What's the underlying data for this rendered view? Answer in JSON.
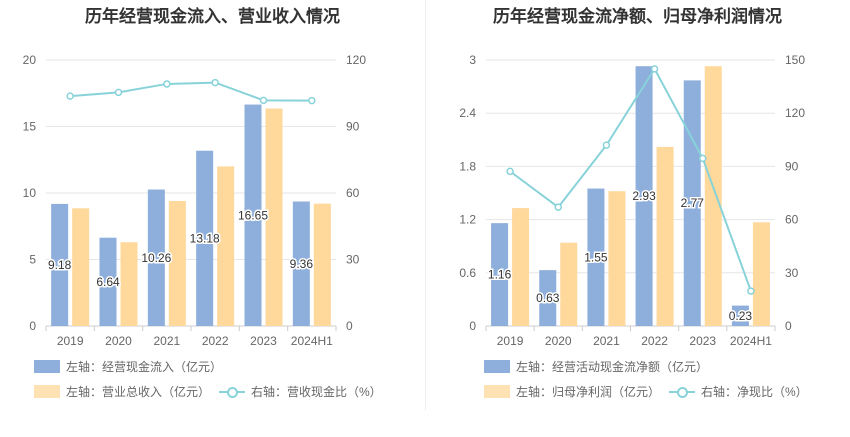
{
  "colors": {
    "bar_left": "#8eaedb",
    "bar_right": "#ffd89b",
    "line": "#88d3d9",
    "grid": "#e6e6e6"
  },
  "chart_data": [
    {
      "type": "bar",
      "title": "历年经营现金流入、营业收入情况",
      "categories": [
        "2019",
        "2020",
        "2021",
        "2022",
        "2023",
        "2024H1"
      ],
      "left_axis": {
        "ticks": [
          "0",
          "5",
          "10",
          "15",
          "20"
        ],
        "ylim": [
          0,
          20
        ]
      },
      "right_axis": {
        "ticks": [
          "0",
          "30",
          "60",
          "90",
          "120"
        ],
        "ylim": [
          0,
          120
        ]
      },
      "series": [
        {
          "name": "左轴：经营现金流入（亿元）",
          "kind": "bar",
          "axis": "left",
          "values": [
            9.18,
            6.64,
            10.26,
            13.18,
            16.65,
            9.36
          ],
          "labels": [
            "9.18",
            "6.64",
            "10.26",
            "13.18",
            "16.65",
            "9.36"
          ]
        },
        {
          "name": "左轴：营业总收入（亿元）",
          "kind": "bar",
          "axis": "left",
          "values": [
            8.85,
            6.3,
            9.4,
            12.0,
            16.35,
            9.2
          ]
        },
        {
          "name": "右轴：营收现金比（%）",
          "kind": "line",
          "axis": "right",
          "values": [
            103.7,
            105.4,
            109.2,
            109.8,
            101.8,
            101.7
          ]
        }
      ]
    },
    {
      "type": "bar",
      "title": "历年经营现金流净额、归母净利润情况",
      "categories": [
        "2019",
        "2020",
        "2021",
        "2022",
        "2023",
        "2024H1"
      ],
      "left_axis": {
        "ticks": [
          "0",
          "0.6",
          "1.2",
          "1.8",
          "2.4",
          "3"
        ],
        "ylim": [
          0,
          3
        ]
      },
      "right_axis": {
        "ticks": [
          "0",
          "30",
          "60",
          "90",
          "120",
          "150"
        ],
        "ylim": [
          0,
          150
        ]
      },
      "series": [
        {
          "name": "左轴：经营活动现金流净额（亿元）",
          "kind": "bar",
          "axis": "left",
          "values": [
            1.16,
            0.63,
            1.55,
            2.93,
            2.77,
            0.23
          ],
          "labels": [
            "1.16",
            "0.63",
            "1.55",
            "2.93",
            "2.77",
            "0.23"
          ]
        },
        {
          "name": "左轴：归母净利润（亿元）",
          "kind": "bar",
          "axis": "left",
          "values": [
            1.33,
            0.94,
            1.52,
            2.02,
            2.93,
            1.17
          ]
        },
        {
          "name": "右轴：净现比（%）",
          "kind": "line",
          "axis": "right",
          "values": [
            87.2,
            67.0,
            102.0,
            145.0,
            94.5,
            19.7
          ]
        }
      ]
    }
  ]
}
